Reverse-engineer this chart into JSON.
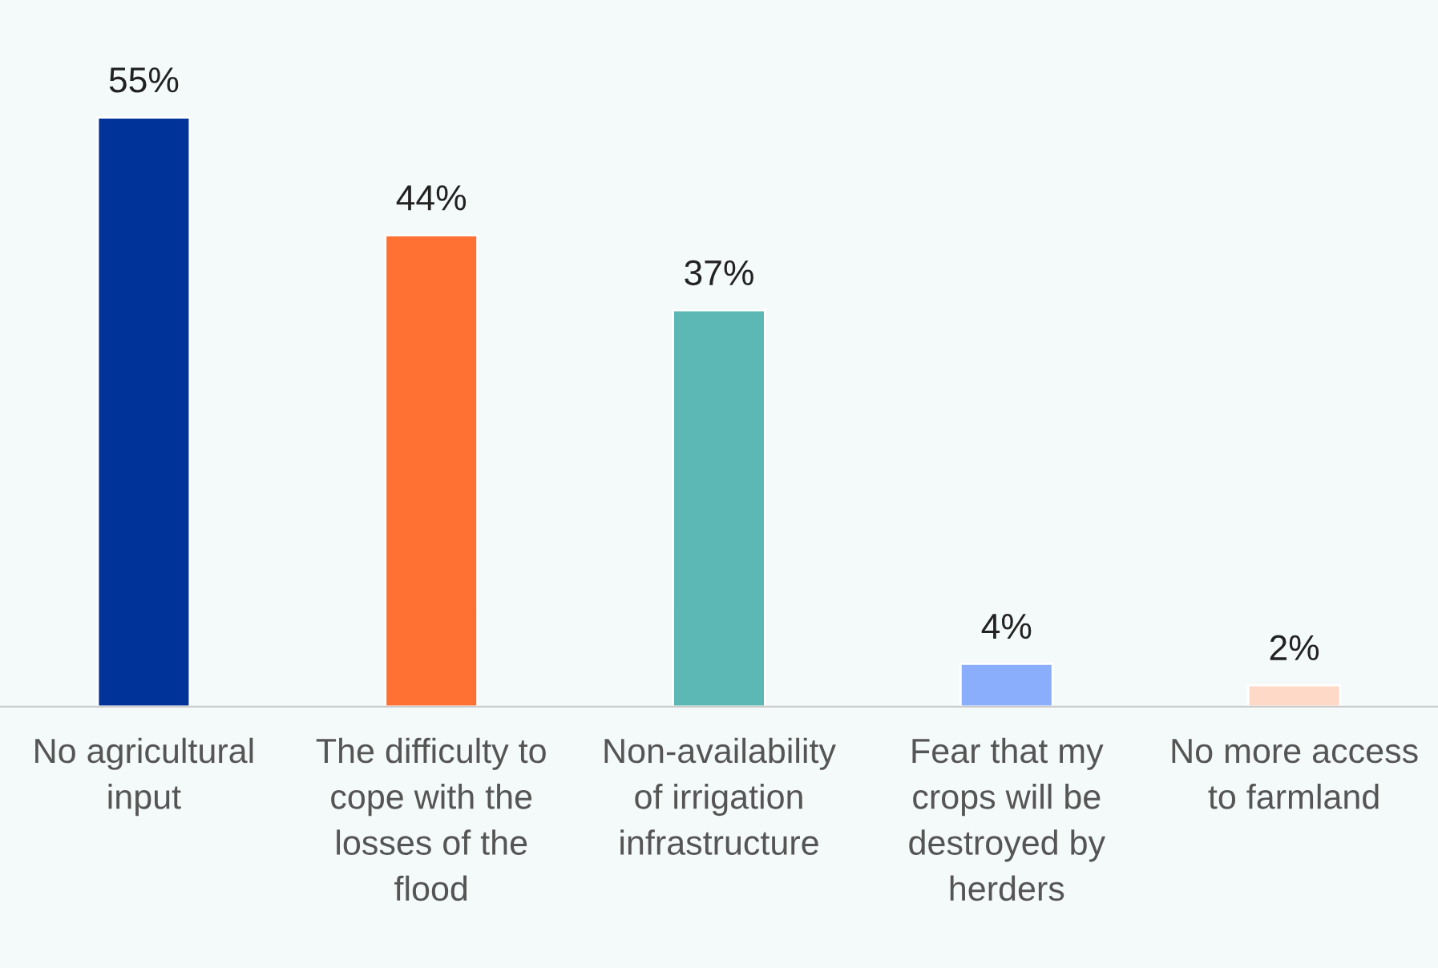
{
  "chart_data": {
    "type": "bar",
    "categories": [
      "No agricultural\ninput",
      "The difficulty to\ncope with the\nlosses of the\nflood",
      "Non-availability\nof irrigation\ninfrastructure",
      "Fear that my\ncrops will be\ndestroyed by\nherders",
      "No more access\nto farmland"
    ],
    "values": [
      55,
      44,
      37,
      4,
      2
    ],
    "colors": [
      "#00339a",
      "#ff7033",
      "#5bb8b4",
      "#8aaefc",
      "#ffd9c7"
    ],
    "value_labels": [
      "55%",
      "44%",
      "37%",
      "4%",
      "2%"
    ],
    "grid": false,
    "legend": false
  }
}
